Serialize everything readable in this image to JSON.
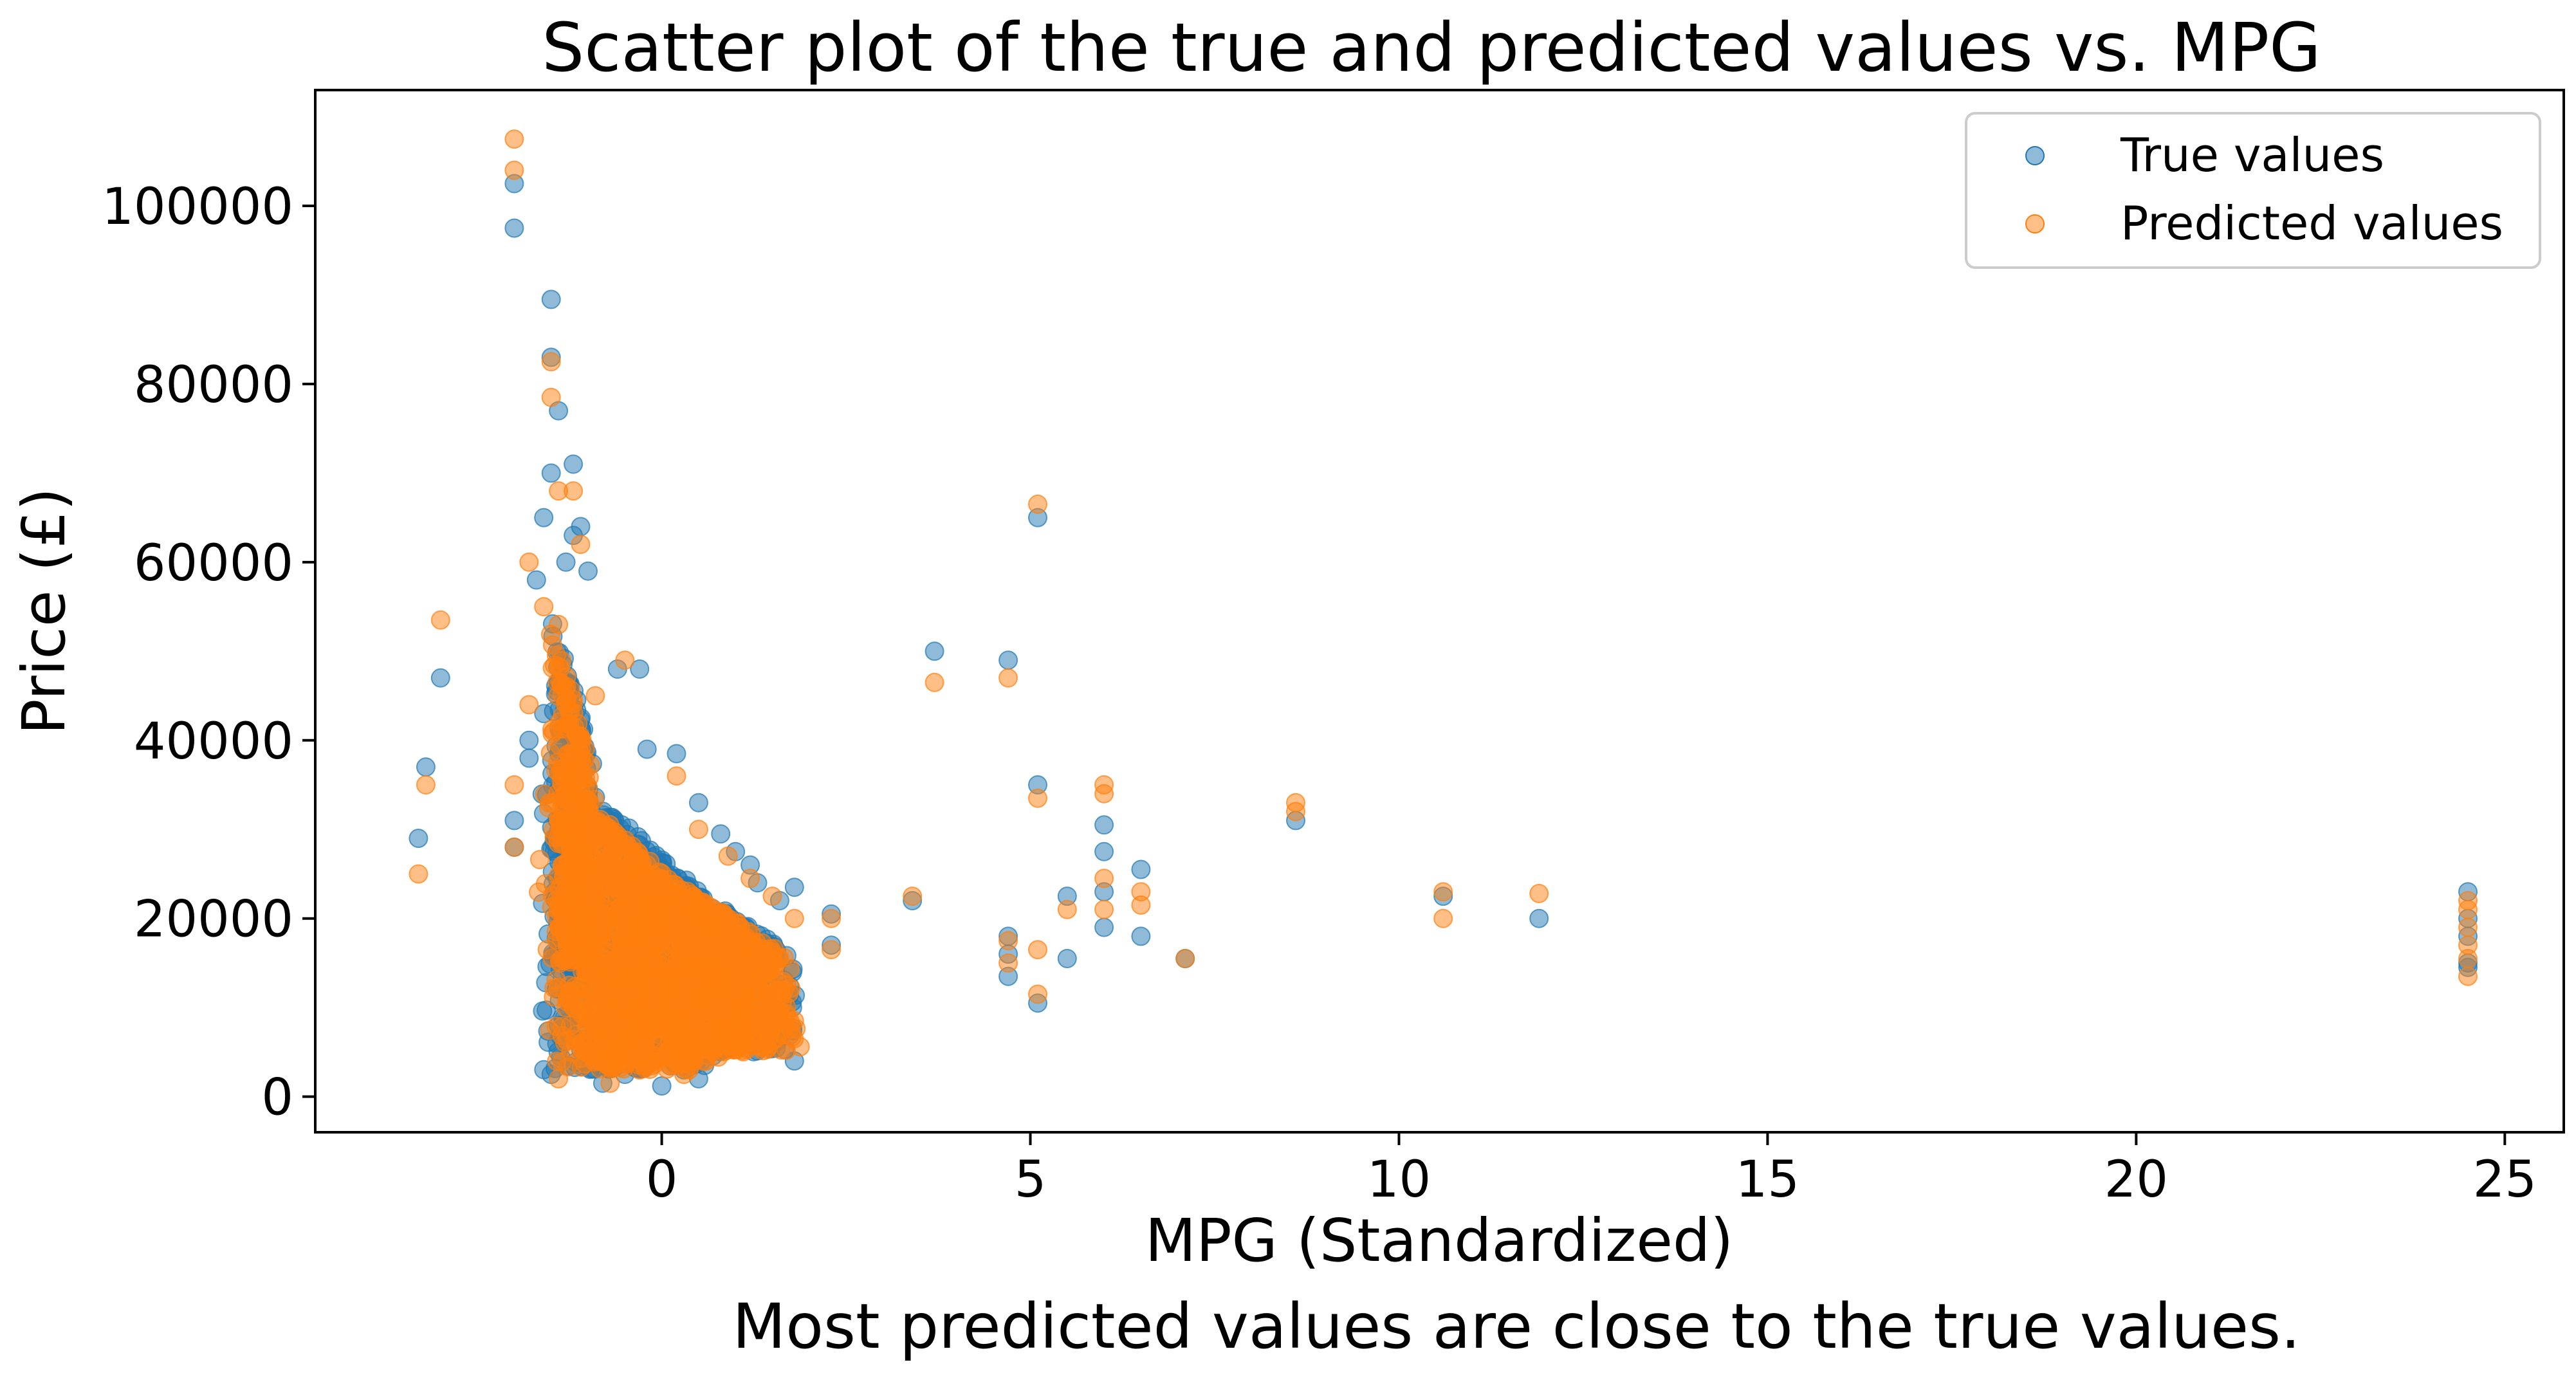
{
  "chart_data": {
    "type": "scatter",
    "title": "Scatter plot of the true and predicted values vs. MPG",
    "xlabel": "MPG (Standardized)",
    "ylabel": "Price (£)",
    "caption": "Most predicted values are close to the true values.",
    "xlim": [
      -4.7,
      25.8
    ],
    "ylim": [
      -4000,
      113000
    ],
    "xticks": [
      0,
      5,
      10,
      15,
      20,
      25
    ],
    "yticks": [
      0,
      20000,
      40000,
      60000,
      80000,
      100000
    ],
    "legend_position": "top-right",
    "grid": false,
    "series": [
      {
        "name": "True values",
        "color": "#1f77b4",
        "alpha": 0.5,
        "points": [
          [
            -3.3,
            29000
          ],
          [
            -3.2,
            37000
          ],
          [
            -3.0,
            47000
          ],
          [
            -2.0,
            97500
          ],
          [
            -2.0,
            102500
          ],
          [
            -2.0,
            28000
          ],
          [
            -2.0,
            31000
          ],
          [
            -1.8,
            38000
          ],
          [
            -1.5,
            89500
          ],
          [
            -1.5,
            83000
          ],
          [
            -1.5,
            70000
          ],
          [
            -1.4,
            77000
          ],
          [
            -1.6,
            65000
          ],
          [
            -1.2,
            71000
          ],
          [
            -1.1,
            64000
          ],
          [
            -1.3,
            60000
          ],
          [
            -1.0,
            59000
          ],
          [
            -1.2,
            63000
          ],
          [
            -0.6,
            48000
          ],
          [
            -0.3,
            48000
          ],
          [
            -1.7,
            58000
          ],
          [
            -1.8,
            40000
          ],
          [
            -1.6,
            43000
          ],
          [
            -1.4,
            8000
          ],
          [
            -1.5,
            2500
          ],
          [
            -0.8,
            1500
          ],
          [
            0.0,
            1200
          ],
          [
            0.5,
            2000
          ],
          [
            -0.2,
            39000
          ],
          [
            0.2,
            38500
          ],
          [
            0.5,
            33000
          ],
          [
            0.8,
            29500
          ],
          [
            1.0,
            27500
          ],
          [
            1.2,
            26000
          ],
          [
            1.3,
            24000
          ],
          [
            1.6,
            22000
          ],
          [
            1.8,
            23500
          ],
          [
            1.8,
            4000
          ],
          [
            1.4,
            6000
          ],
          [
            0.9,
            5500
          ],
          [
            0.3,
            3000
          ],
          [
            -0.5,
            2500
          ],
          [
            2.3,
            20500
          ],
          [
            2.3,
            17000
          ],
          [
            3.4,
            22000
          ],
          [
            3.7,
            50000
          ],
          [
            4.7,
            49000
          ],
          [
            4.7,
            18000
          ],
          [
            4.7,
            13500
          ],
          [
            4.7,
            16000
          ],
          [
            5.1,
            65000
          ],
          [
            5.1,
            35000
          ],
          [
            5.1,
            10500
          ],
          [
            5.5,
            22500
          ],
          [
            5.5,
            15500
          ],
          [
            6.0,
            30500
          ],
          [
            6.0,
            27500
          ],
          [
            6.0,
            23000
          ],
          [
            6.0,
            19000
          ],
          [
            6.5,
            25500
          ],
          [
            6.5,
            18000
          ],
          [
            7.1,
            15500
          ],
          [
            8.6,
            31000
          ],
          [
            10.6,
            22500
          ],
          [
            11.9,
            20000
          ],
          [
            24.5,
            23000
          ],
          [
            24.5,
            20000
          ],
          [
            24.5,
            18000
          ],
          [
            24.5,
            15000
          ],
          [
            24.5,
            14500
          ]
        ],
        "clusters": [
          {
            "x_center": -0.4,
            "x_spread": 1.3,
            "y_min": 3000,
            "y_max": 40000,
            "count": 900
          },
          {
            "x_center": 0.9,
            "x_spread": 1.0,
            "y_min": 5000,
            "y_max": 27000,
            "count": 420
          },
          {
            "x_center": -1.2,
            "x_spread": 0.35,
            "y_min": 15000,
            "y_max": 58000,
            "count": 260
          }
        ]
      },
      {
        "name": "Predicted values",
        "color": "#ff7f0e",
        "alpha": 0.5,
        "points": [
          [
            -3.3,
            25000
          ],
          [
            -3.2,
            35000
          ],
          [
            -3.0,
            53500
          ],
          [
            -2.0,
            107500
          ],
          [
            -2.0,
            104000
          ],
          [
            -2.0,
            28000
          ],
          [
            -2.0,
            35000
          ],
          [
            -1.8,
            44000
          ],
          [
            -1.5,
            82500
          ],
          [
            -1.5,
            78500
          ],
          [
            -1.4,
            68000
          ],
          [
            -1.2,
            68000
          ],
          [
            -1.1,
            62000
          ],
          [
            -1.6,
            55000
          ],
          [
            -1.4,
            53000
          ],
          [
            -1.8,
            60000
          ],
          [
            -0.9,
            45000
          ],
          [
            -0.5,
            49000
          ],
          [
            -1.3,
            10000
          ],
          [
            -1.4,
            2000
          ],
          [
            -0.7,
            1500
          ],
          [
            0.3,
            2500
          ],
          [
            0.2,
            36000
          ],
          [
            0.5,
            30000
          ],
          [
            0.9,
            27000
          ],
          [
            1.2,
            24500
          ],
          [
            1.5,
            22500
          ],
          [
            1.8,
            20000
          ],
          [
            1.8,
            8500
          ],
          [
            1.1,
            6000
          ],
          [
            0.6,
            4000
          ],
          [
            -0.3,
            3000
          ],
          [
            2.3,
            20000
          ],
          [
            2.3,
            16500
          ],
          [
            3.4,
            22500
          ],
          [
            3.7,
            46500
          ],
          [
            4.7,
            47000
          ],
          [
            4.7,
            17500
          ],
          [
            4.7,
            15000
          ],
          [
            5.1,
            66500
          ],
          [
            5.1,
            33500
          ],
          [
            5.1,
            11500
          ],
          [
            5.1,
            16500
          ],
          [
            5.5,
            21000
          ],
          [
            6.0,
            35000
          ],
          [
            6.0,
            34000
          ],
          [
            6.0,
            24500
          ],
          [
            6.0,
            21000
          ],
          [
            6.5,
            23000
          ],
          [
            6.5,
            21500
          ],
          [
            7.1,
            15500
          ],
          [
            8.6,
            33000
          ],
          [
            8.6,
            32000
          ],
          [
            10.6,
            23000
          ],
          [
            10.6,
            20000
          ],
          [
            11.9,
            22800
          ],
          [
            24.5,
            22000
          ],
          [
            24.5,
            21000
          ],
          [
            24.5,
            19000
          ],
          [
            24.5,
            17000
          ],
          [
            24.5,
            15500
          ],
          [
            24.5,
            13500
          ]
        ],
        "clusters": [
          {
            "x_center": -0.4,
            "x_spread": 1.3,
            "y_min": 3000,
            "y_max": 38000,
            "count": 1000
          },
          {
            "x_center": 0.9,
            "x_spread": 1.0,
            "y_min": 5000,
            "y_max": 26000,
            "count": 460
          },
          {
            "x_center": -1.2,
            "x_spread": 0.35,
            "y_min": 15000,
            "y_max": 56000,
            "count": 300
          }
        ]
      }
    ]
  }
}
